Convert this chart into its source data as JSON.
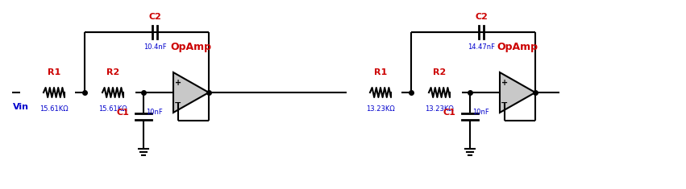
{
  "bg_color": "#ffffff",
  "line_color": "#000000",
  "red_color": "#cc0000",
  "blue_color": "#0000cc",
  "stage1": {
    "R1_label": "R1",
    "R1_value": "15.61KΩ",
    "R2_label": "R2",
    "R2_value": "15.61KΩ",
    "C1_label": "C1",
    "C1_value": "10nF",
    "C2_label": "C2",
    "C2_value": "10.4nF",
    "opamp_label": "OpAmp"
  },
  "stage2": {
    "R1_label": "R1",
    "R1_value": "13.23KΩ",
    "R2_label": "R2",
    "R2_value": "13.23KΩ",
    "C1_label": "C1",
    "C1_value": "10nF",
    "C2_label": "C2",
    "C2_value": "14.47nF",
    "opamp_label": "OpAmp"
  },
  "vin_label": "Vin",
  "figsize": [
    8.51,
    2.35
  ],
  "dpi": 100
}
